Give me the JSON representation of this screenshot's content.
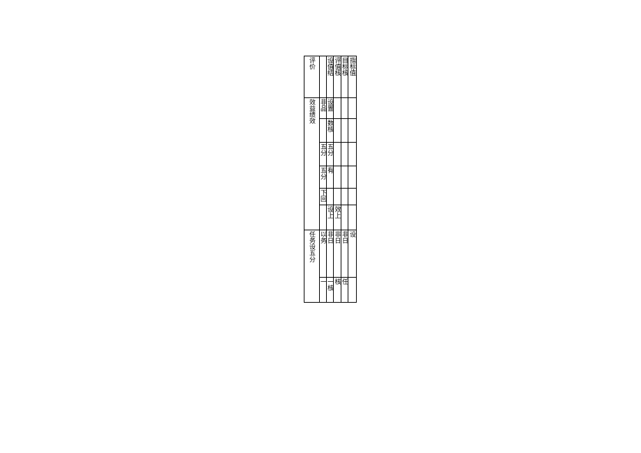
{
  "table": {
    "type": "table",
    "border_color": "#000000",
    "background_color": "#ffffff",
    "text_color": "#000000",
    "font_family": "SimSun",
    "font_size": 9,
    "columns": [
      {
        "width": 22,
        "align": "center"
      },
      {
        "width": 10,
        "align": "center"
      },
      {
        "width": 10,
        "align": "center"
      },
      {
        "width": 11,
        "align": "center"
      },
      {
        "width": 10,
        "align": "center"
      },
      {
        "width": 12,
        "align": "center"
      }
    ],
    "header": {
      "c0": "评价",
      "c1": " ",
      "c2": "设值结",
      "c3": "评值核",
      "c4": "目标核",
      "c5": "指标值"
    },
    "section1": {
      "rowlabel": "效益绩效",
      "r1": {
        "c1": "非品",
        "c2": "设置",
        "c3": " ",
        "c4": " ",
        "c5": " "
      },
      "r2": {
        "c1": " ",
        "c2": "数核",
        "c3": " ",
        "c4": " ",
        "c5": " "
      },
      "r3": {
        "c1": "五分",
        "c2": "五分",
        "c3": " ",
        "c4": " ",
        "c5": " "
      },
      "r4": {
        "c1": "五分",
        "c2": "有",
        "c3": " ",
        "c4": " ",
        "c5": " "
      },
      "r5": {
        "c1": "下回",
        "c2": " ",
        "c3": " ",
        "c4": " ",
        "c5": " "
      },
      "r6": {
        "c1": " ",
        "c2": "设上",
        "c3": "效上",
        "c4": " ",
        "c5": " "
      }
    },
    "section2": {
      "rowlabel": "任务设五分",
      "r7": {
        "c1": "以务",
        "c2": "非日",
        "c3": "非日",
        "c4": "非日",
        "c5": "设"
      },
      "r8": {
        "c1": "一",
        "c2": "一核",
        "c3": "核",
        "c4": "任",
        "c5": " "
      }
    }
  }
}
